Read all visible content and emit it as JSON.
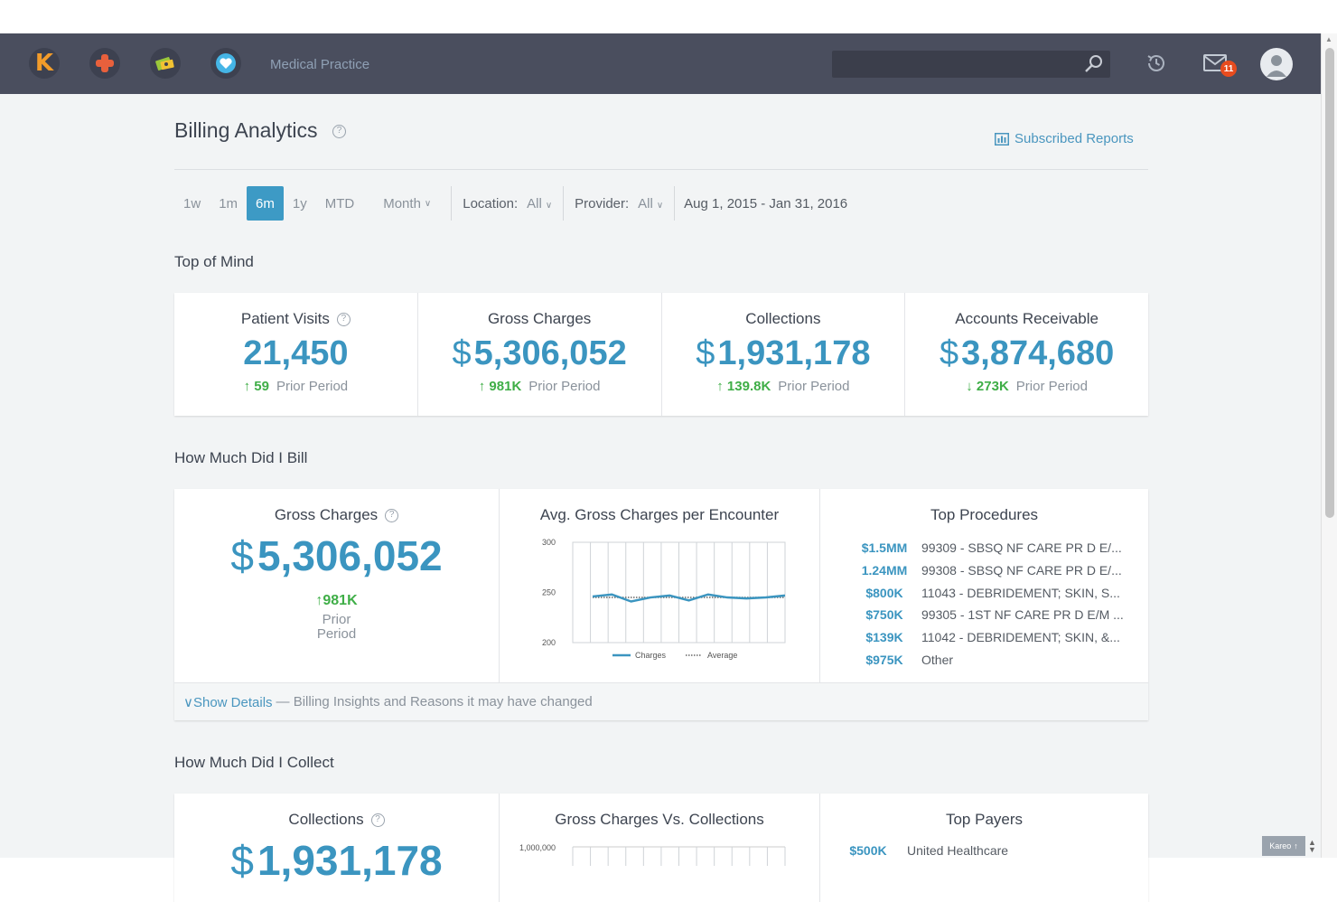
{
  "nav": {
    "practice_name": "Medical Practice",
    "search_placeholder": "",
    "mail_count": "11",
    "app_k_letter": "K"
  },
  "header": {
    "title": "Billing Analytics",
    "subscribed_reports": "Subscribed Reports"
  },
  "filters": {
    "periods": [
      "1w",
      "1m",
      "6m",
      "1y",
      "MTD"
    ],
    "active_period": "6m",
    "month_label": "Month",
    "location_label": "Location:",
    "location_value": "All",
    "provider_label": "Provider:",
    "provider_value": "All",
    "date_range": "Aug 1, 2015 - Jan 31, 2016"
  },
  "sections": {
    "top_of_mind": "Top of Mind",
    "how_much_bill": "How Much Did I Bill",
    "how_much_collect": "How Much Did I Collect"
  },
  "kpis": [
    {
      "label": "Patient Visits",
      "help": true,
      "currency": "",
      "value": "21,450",
      "arrow": "up",
      "delta": "59",
      "prior": "Prior Period"
    },
    {
      "label": "Gross Charges",
      "help": false,
      "currency": "$",
      "value": "5,306,052",
      "arrow": "up",
      "delta": "981K",
      "prior": "Prior Period"
    },
    {
      "label": "Collections",
      "help": false,
      "currency": "$",
      "value": "1,931,178",
      "arrow": "up",
      "delta": "139.8K",
      "prior": "Prior Period"
    },
    {
      "label": "Accounts Receivable",
      "help": false,
      "currency": "$",
      "value": "3,874,680",
      "arrow": "down",
      "delta": "273K",
      "prior": "Prior Period"
    }
  ],
  "billing": {
    "gross_title": "Gross Charges",
    "currency": "$",
    "gross_value": "5,306,052",
    "gross_delta": "981K",
    "gross_prior_1": "Prior",
    "gross_prior_2": "Period",
    "avg_title": "Avg. Gross Charges per Encounter",
    "top_proc_title": "Top Procedures",
    "procedures": [
      {
        "amount": "$1.5MM",
        "desc": "99309 - SBSQ NF CARE PR D E/..."
      },
      {
        "amount": "1.24MM",
        "desc": "99308 - SBSQ NF CARE PR D E/..."
      },
      {
        "amount": "$800K",
        "desc": "11043 - DEBRIDEMENT; SKIN, S..."
      },
      {
        "amount": "$750K",
        "desc": "99305 - 1ST NF CARE PR D E/M ..."
      },
      {
        "amount": "$139K",
        "desc": "11042 - DEBRIDEMENT; SKIN, &..."
      },
      {
        "amount": "$975K",
        "desc": "Other"
      }
    ],
    "show_details": "Show Details",
    "details_text": "— Billing Insights and Reasons it may have changed"
  },
  "chart_data": {
    "type": "line",
    "title": "Avg. Gross Charges per Encounter",
    "ylim": [
      200,
      300
    ],
    "yticks": [
      "300",
      "250",
      "200"
    ],
    "grid": true,
    "legend_position": "bottom",
    "series": [
      {
        "name": "Charges",
        "values": [
          246,
          248,
          241,
          245,
          247,
          242,
          248,
          245,
          244,
          245,
          247
        ]
      },
      {
        "name": "Average",
        "values": [
          245,
          245,
          245,
          245,
          245,
          245,
          245,
          245,
          245,
          245,
          245
        ]
      }
    ]
  },
  "collect": {
    "collections_title": "Collections",
    "collections_value": "1,931,178",
    "gvc_title": "Gross Charges Vs. Collections",
    "gvc_ytick": "1,000,000",
    "top_payers_title": "Top Payers",
    "payer_amount": "$500K",
    "payer_name": "United Healthcare"
  },
  "widget": {
    "label": "Kareo"
  },
  "colors": {
    "accent": "#3b95c0",
    "positive": "#3fae47",
    "nav": "#4a4e5e",
    "badge": "#e84c1e"
  }
}
